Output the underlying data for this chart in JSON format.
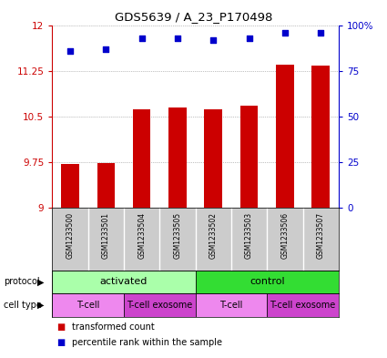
{
  "title": "GDS5639 / A_23_P170498",
  "samples": [
    "GSM1233500",
    "GSM1233501",
    "GSM1233504",
    "GSM1233505",
    "GSM1233502",
    "GSM1233503",
    "GSM1233506",
    "GSM1233507"
  ],
  "bar_values": [
    9.72,
    9.73,
    10.62,
    10.65,
    10.62,
    10.67,
    11.35,
    11.33
  ],
  "percentile_values": [
    86,
    87,
    93,
    93,
    92,
    93,
    96,
    96
  ],
  "ylim": [
    9.0,
    12.0
  ],
  "yticks": [
    9.0,
    9.75,
    10.5,
    11.25,
    12.0
  ],
  "ytick_labels": [
    "9",
    "9.75",
    "10.5",
    "11.25",
    "12"
  ],
  "right_yticks": [
    0,
    25,
    50,
    75,
    100
  ],
  "right_ytick_labels": [
    "0",
    "25",
    "50",
    "75",
    "100%"
  ],
  "bar_color": "#cc0000",
  "dot_color": "#0000cc",
  "bar_bottom": 9.0,
  "protocol_groups": [
    {
      "label": "activated",
      "start": 0,
      "end": 4,
      "color": "#aaffaa"
    },
    {
      "label": "control",
      "start": 4,
      "end": 8,
      "color": "#33dd33"
    }
  ],
  "celltype_groups": [
    {
      "label": "T-cell",
      "start": 0,
      "end": 2,
      "color": "#ee88ee"
    },
    {
      "label": "T-cell exosome",
      "start": 2,
      "end": 4,
      "color": "#cc44cc"
    },
    {
      "label": "T-cell",
      "start": 4,
      "end": 6,
      "color": "#ee88ee"
    },
    {
      "label": "T-cell exosome",
      "start": 6,
      "end": 8,
      "color": "#cc44cc"
    }
  ],
  "left_axis_color": "#cc0000",
  "right_axis_color": "#0000cc",
  "bg_color": "#ffffff",
  "grid_color": "#888888",
  "sample_label_bg": "#cccccc",
  "sample_label_sep": "#ffffff"
}
